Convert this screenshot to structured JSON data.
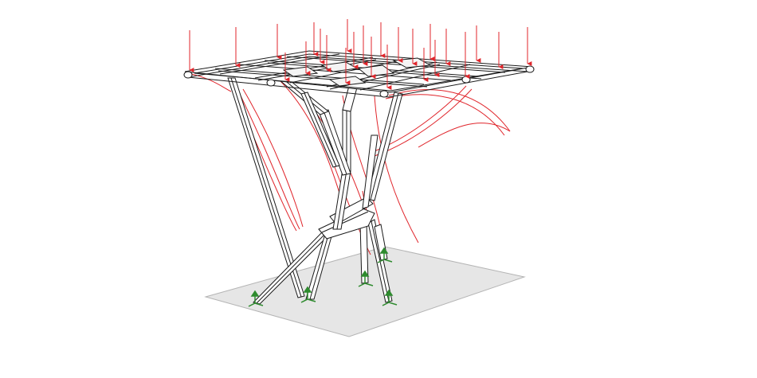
{
  "figure": {
    "subject": "tree-like-column-structural-model",
    "colors": {
      "background": "#ffffff",
      "ground": "#e6e6e6",
      "ground_edge": "#b4b4b4",
      "member": "#1a1a1a",
      "member_fill": "#ffffff",
      "deformed": "#e0252b",
      "load": "#e0252b",
      "support": "#2e8b2e"
    },
    "legend": []
  }
}
